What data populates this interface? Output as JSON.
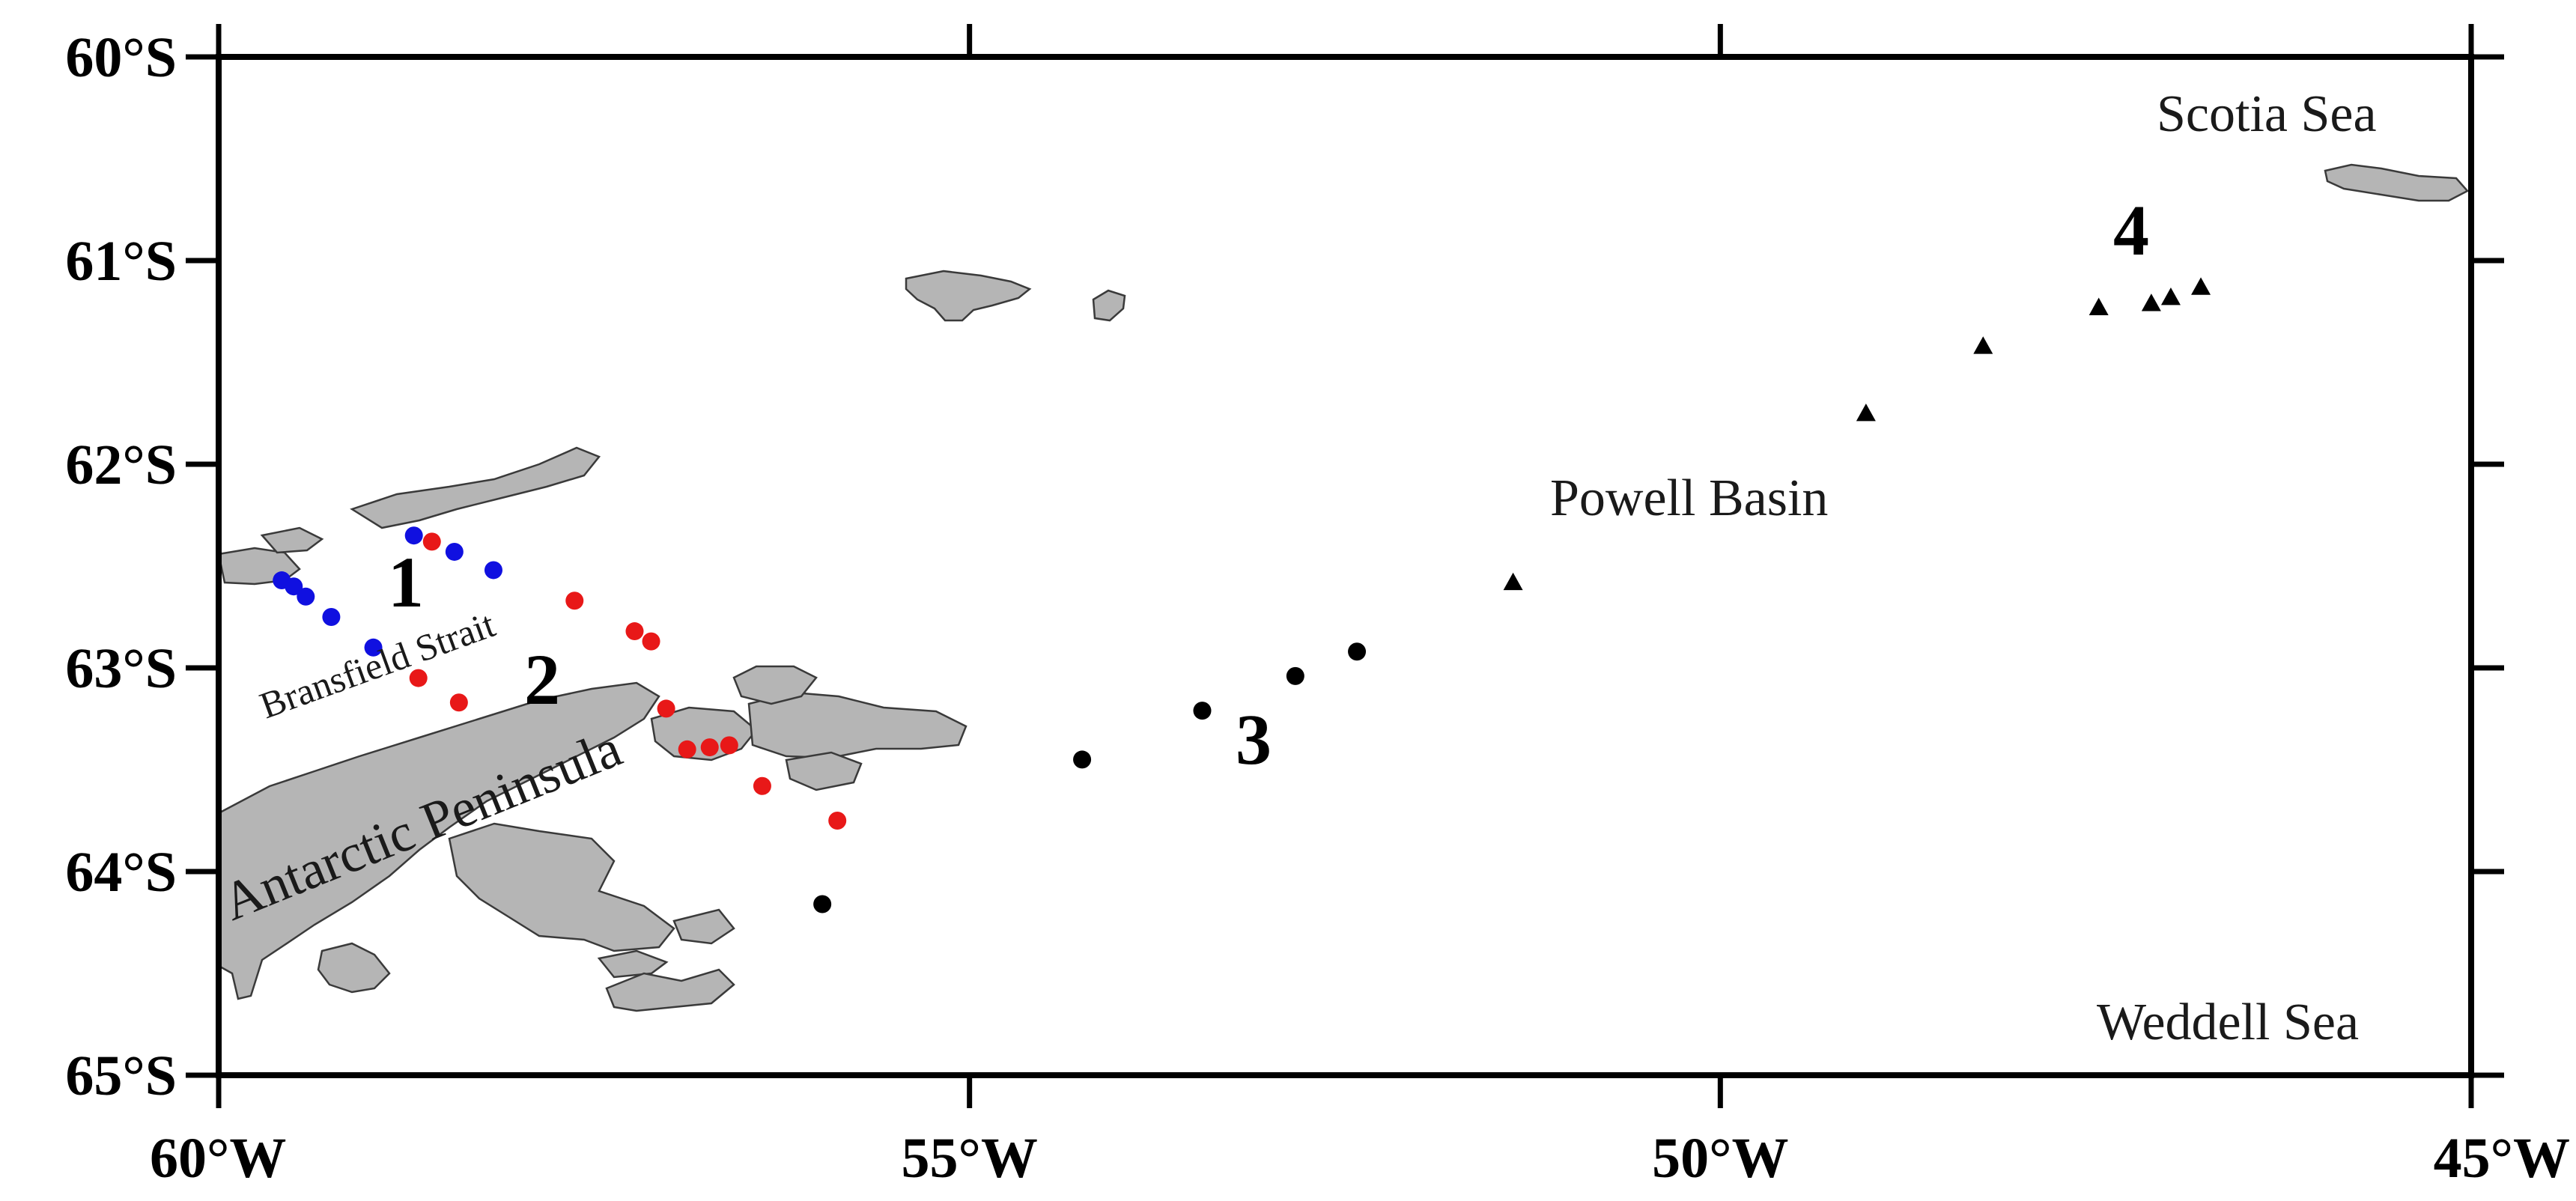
{
  "map": {
    "lon_range": [
      -60,
      -45
    ],
    "lat_range": [
      -65,
      -60
    ],
    "x_ticks": [
      {
        "value": -60,
        "label": "60°W"
      },
      {
        "value": -55,
        "label": "55°W"
      },
      {
        "value": -50,
        "label": "50°W"
      },
      {
        "value": -45,
        "label": "45°W"
      }
    ],
    "y_ticks": [
      {
        "value": -60,
        "label": "60°S"
      },
      {
        "value": -61,
        "label": "61°S"
      },
      {
        "value": -62,
        "label": "62°S"
      },
      {
        "value": -63,
        "label": "63°S"
      },
      {
        "value": -64,
        "label": "64°S"
      },
      {
        "value": -65,
        "label": "65°S"
      }
    ],
    "region_labels": {
      "scotia": "Scotia Sea",
      "weddell": "Weddell Sea",
      "powell": "Powell Basin",
      "bransfield": "Bransfield Strait",
      "peninsula": "Antarctic Peninsula"
    },
    "sections": [
      {
        "label": "1",
        "color": "#1010e0",
        "marker": "circle",
        "stations": [
          [
            -59.58,
            -62.57
          ],
          [
            -59.5,
            -62.6
          ],
          [
            -59.42,
            -62.65
          ],
          [
            -59.25,
            -62.75
          ],
          [
            -58.97,
            -62.9
          ],
          [
            -58.7,
            -62.35
          ],
          [
            -58.43,
            -62.43
          ],
          [
            -58.17,
            -62.52
          ]
        ]
      },
      {
        "label": "2",
        "color": "#e81818",
        "marker": "circle",
        "stations": [
          [
            -58.58,
            -62.38
          ],
          [
            -57.63,
            -62.67
          ],
          [
            -57.23,
            -62.82
          ],
          [
            -57.12,
            -62.87
          ],
          [
            -57.02,
            -63.2
          ],
          [
            -58.67,
            -63.05
          ],
          [
            -58.4,
            -63.17
          ],
          [
            -56.88,
            -63.4
          ],
          [
            -56.73,
            -63.39
          ],
          [
            -56.6,
            -63.38
          ],
          [
            -56.38,
            -63.58
          ],
          [
            -55.88,
            -63.75
          ]
        ]
      },
      {
        "label": "3",
        "color": "#000000",
        "marker": "circle",
        "stations": [
          [
            -55.98,
            -64.16
          ],
          [
            -54.25,
            -63.45
          ],
          [
            -53.45,
            -63.21
          ],
          [
            -52.83,
            -63.04
          ],
          [
            -52.42,
            -62.92
          ]
        ]
      },
      {
        "label": "4",
        "color": "#000000",
        "marker": "triangle",
        "stations": [
          [
            -51.38,
            -62.58
          ],
          [
            -49.03,
            -61.75
          ],
          [
            -48.25,
            -61.42
          ],
          [
            -47.48,
            -61.23
          ],
          [
            -47.13,
            -61.21
          ],
          [
            -47.0,
            -61.18
          ],
          [
            -46.8,
            -61.13
          ]
        ]
      }
    ]
  }
}
